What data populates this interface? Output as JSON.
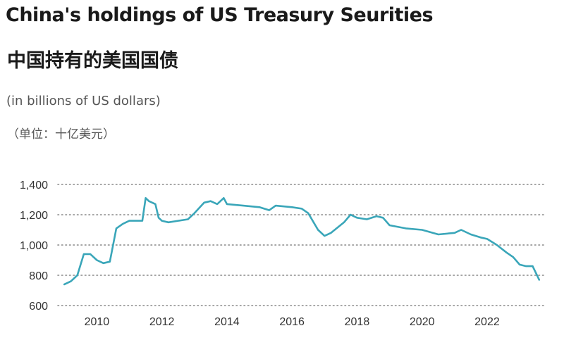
{
  "title": "China's holdings of US Treasury Seurities",
  "subtitle_zh": "中国持有的美国国债",
  "unit_en": "(in billions of US dollars)",
  "unit_zh": "（单位：十亿美元）",
  "colors": {
    "line": "#3aa6b9",
    "grid": "#888888",
    "text": "#1a1a1a"
  },
  "chart_data": {
    "type": "line",
    "xlim": [
      2008.8,
      2023.8
    ],
    "ylim": [
      600,
      1400
    ],
    "x_ticks": [
      2010,
      2012,
      2014,
      2016,
      2018,
      2020,
      2022
    ],
    "x_tick_labels": [
      "2010",
      "2012",
      "2014",
      "2016",
      "2018",
      "2020",
      "2022"
    ],
    "y_ticks": [
      600,
      800,
      1000,
      1200,
      1400
    ],
    "y_tick_labels": [
      "600",
      "800",
      "1,000",
      "1,200",
      "1,400"
    ],
    "grid": "horizontal-dotted",
    "series": [
      {
        "x": [
          2009.0,
          2009.2,
          2009.4,
          2009.6,
          2009.8,
          2010.0,
          2010.2,
          2010.4,
          2010.6,
          2010.8,
          2011.0,
          2011.2,
          2011.4,
          2011.5,
          2011.6,
          2011.8,
          2011.9,
          2012.0,
          2012.2,
          2012.5,
          2012.8,
          2013.0,
          2013.3,
          2013.5,
          2013.7,
          2013.9,
          2014.0,
          2014.5,
          2015.0,
          2015.3,
          2015.5,
          2016.0,
          2016.3,
          2016.5,
          2016.8,
          2017.0,
          2017.2,
          2017.6,
          2017.8,
          2018.0,
          2018.3,
          2018.6,
          2018.8,
          2019.0,
          2019.5,
          2020.0,
          2020.5,
          2021.0,
          2021.2,
          2021.5,
          2021.8,
          2022.0,
          2022.3,
          2022.6,
          2022.8,
          2023.0,
          2023.2,
          2023.4,
          2023.6
        ],
        "y": [
          740,
          760,
          800,
          940,
          940,
          900,
          880,
          890,
          1110,
          1140,
          1160,
          1160,
          1160,
          1310,
          1290,
          1270,
          1180,
          1160,
          1150,
          1160,
          1170,
          1210,
          1280,
          1290,
          1270,
          1310,
          1270,
          1260,
          1250,
          1230,
          1260,
          1250,
          1240,
          1210,
          1100,
          1060,
          1080,
          1150,
          1200,
          1180,
          1170,
          1190,
          1180,
          1130,
          1110,
          1100,
          1070,
          1080,
          1100,
          1070,
          1050,
          1040,
          1000,
          950,
          920,
          870,
          860,
          860,
          770
        ]
      }
    ]
  }
}
